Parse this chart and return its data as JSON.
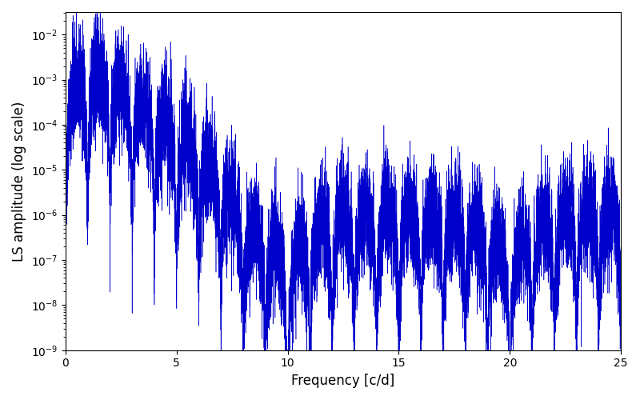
{
  "xlabel": "Frequency [c/d]",
  "ylabel": "LS amplitude (log scale)",
  "line_color": "#0000CC",
  "xlim": [
    0,
    25
  ],
  "ylim_log": [
    -9,
    -1.5
  ],
  "background_color": "#ffffff",
  "figsize": [
    8.0,
    5.0
  ],
  "dpi": 100,
  "seed": 137
}
